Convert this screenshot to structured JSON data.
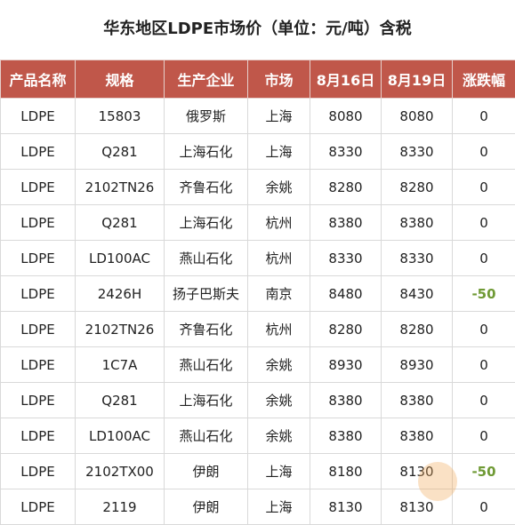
{
  "title": "华东地区LDPE市场价（单位：元/吨）含税",
  "table": {
    "header": [
      "产品名称",
      "规格",
      "生产企业",
      "市场",
      "8月16日",
      "8月19日",
      "涨跌幅"
    ],
    "rows": [
      [
        "LDPE",
        "15803",
        "俄罗斯",
        "上海",
        8080,
        8080,
        0
      ],
      [
        "LDPE",
        "Q281",
        "上海石化",
        "上海",
        8330,
        8330,
        0
      ],
      [
        "LDPE",
        "2102TN26",
        "齐鲁石化",
        "余姚",
        8280,
        8280,
        0
      ],
      [
        "LDPE",
        "Q281",
        "上海石化",
        "杭州",
        8380,
        8380,
        0
      ],
      [
        "LDPE",
        "LD100AC",
        "燕山石化",
        "杭州",
        8330,
        8330,
        0
      ],
      [
        "LDPE",
        "2426H",
        "扬子巴斯夫",
        "南京",
        8480,
        8430,
        -50
      ],
      [
        "LDPE",
        "2102TN26",
        "齐鲁石化",
        "杭州",
        8280,
        8280,
        0
      ],
      [
        "LDPE",
        "1C7A",
        "燕山石化",
        "余姚",
        8930,
        8930,
        0
      ],
      [
        "LDPE",
        "Q281",
        "上海石化",
        "余姚",
        8380,
        8380,
        0
      ],
      [
        "LDPE",
        "LD100AC",
        "燕山石化",
        "余姚",
        8380,
        8380,
        0
      ],
      [
        "LDPE",
        "2102TX00",
        "伊朗",
        "上海",
        8180,
        8130,
        -50
      ],
      [
        "LDPE",
        "2119",
        "伊朗",
        "上海",
        8130,
        8130,
        0
      ]
    ]
  }
}
